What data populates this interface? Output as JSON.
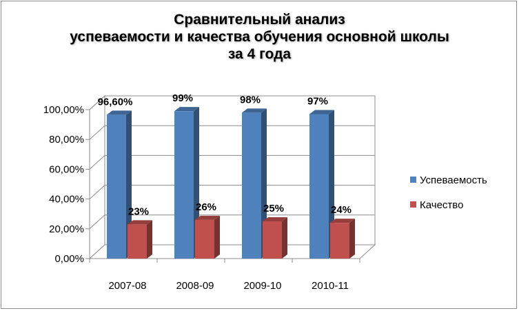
{
  "chart_data": {
    "type": "bar",
    "title": [
      "Сравнительный анализ",
      "успеваемости и качества обучения основной школы",
      "за 4 года"
    ],
    "categories": [
      "2007-08",
      "2008-09",
      "2009-10",
      "2010-11"
    ],
    "series": [
      {
        "name": "Успеваемость",
        "values": [
          96.6,
          99,
          98,
          97
        ],
        "labels": [
          "96,60%",
          "99%",
          "98%",
          "97%"
        ],
        "color": "#4f81bd"
      },
      {
        "name": "Качество",
        "values": [
          23,
          26,
          25,
          24
        ],
        "labels": [
          "23%",
          "26%",
          "25%",
          "24%"
        ],
        "color": "#c0504d"
      }
    ],
    "yticks": [
      "0,00%",
      "20,00%",
      "40,00%",
      "60,00%",
      "80,00%",
      "100,00%"
    ],
    "ylim": [
      0,
      100
    ],
    "grid": true,
    "legend": "right"
  }
}
